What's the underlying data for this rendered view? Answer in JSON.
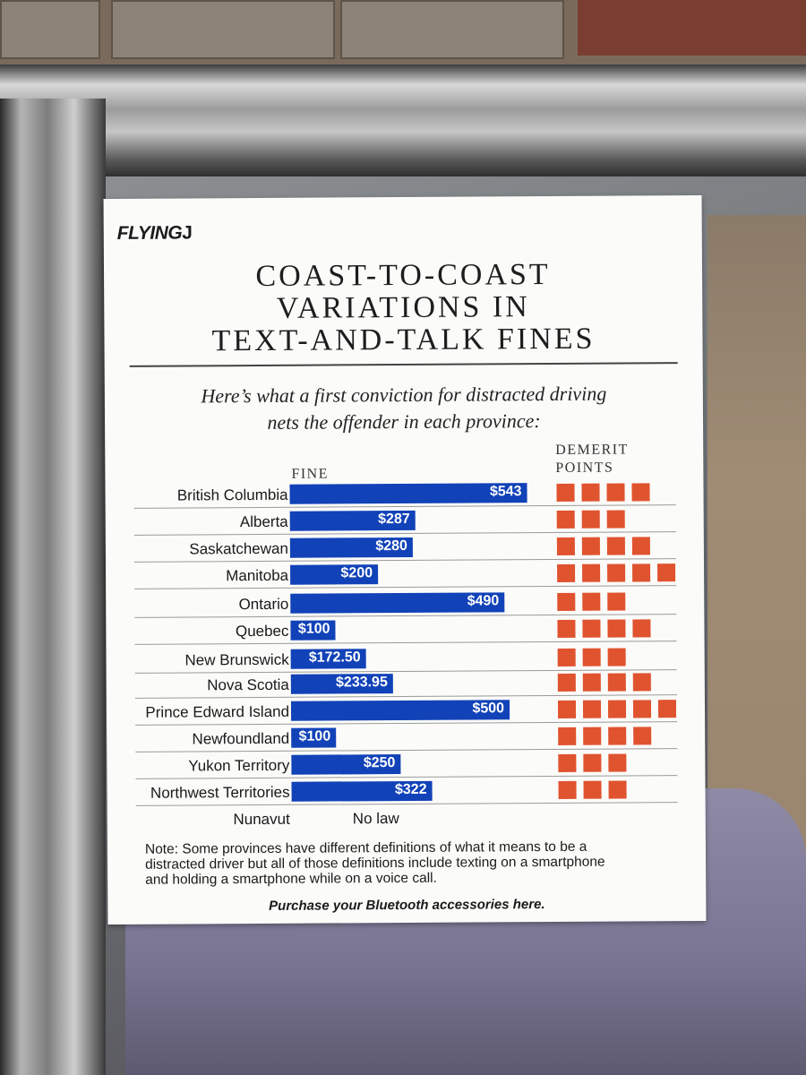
{
  "poster": {
    "brand": "FLYING",
    "brand_symbol": "J",
    "title_lines": [
      "COAST-TO-COAST",
      "VARIATIONS IN",
      "TEXT-AND-TALK FINES"
    ],
    "subtitle_lines": [
      "Here’s what a first conviction for distracted driving",
      "nets the offender in each province:"
    ],
    "fine_header": "FINE",
    "points_header_lines": [
      "DEMERIT",
      "POINTS"
    ],
    "note_lines": [
      "Note: Some provinces have different definitions of what it means to be a",
      "distracted driver but all of those definitions include texting on a smartphone",
      "and holding a smartphone while on a voice call."
    ],
    "cta": "Purchase your Bluetooth accessories here."
  },
  "chart_data": {
    "type": "bar",
    "orientation": "horizontal",
    "bar_color": "#1142b8",
    "point_color": "#e0532f",
    "rows": [
      {
        "province": "British Columbia",
        "fine": 543,
        "fine_label": "$543",
        "points": 4
      },
      {
        "province": "Alberta",
        "fine": 287,
        "fine_label": "$287",
        "points": 3
      },
      {
        "province": "Saskatchewan",
        "fine": 280,
        "fine_label": "$280",
        "points": 4
      },
      {
        "province": "Manitoba",
        "fine": 200,
        "fine_label": "$200",
        "points": 5
      },
      {
        "province": "Ontario",
        "fine": 490,
        "fine_label": "$490",
        "points": 3
      },
      {
        "province": "Quebec",
        "fine": 100,
        "fine_label": "$100",
        "points": 4
      },
      {
        "province": "New Brunswick",
        "fine": 172.5,
        "fine_label": "$172.50",
        "points": 3
      },
      {
        "province": "Nova Scotia",
        "fine": 233.95,
        "fine_label": "$233.95",
        "points": 4
      },
      {
        "province": "Prince Edward Island",
        "fine": 500,
        "fine_label": "$500",
        "points": 5
      },
      {
        "province": "Newfoundland",
        "fine": 100,
        "fine_label": "$100",
        "points": 4
      },
      {
        "province": "Yukon Territory",
        "fine": 250,
        "fine_label": "$250",
        "points": 3
      },
      {
        "province": "Northwest Territories",
        "fine": 322,
        "fine_label": "$322",
        "points": 3
      },
      {
        "province": "Nunavut",
        "fine": null,
        "fine_label": "No law",
        "points": 0
      }
    ]
  }
}
